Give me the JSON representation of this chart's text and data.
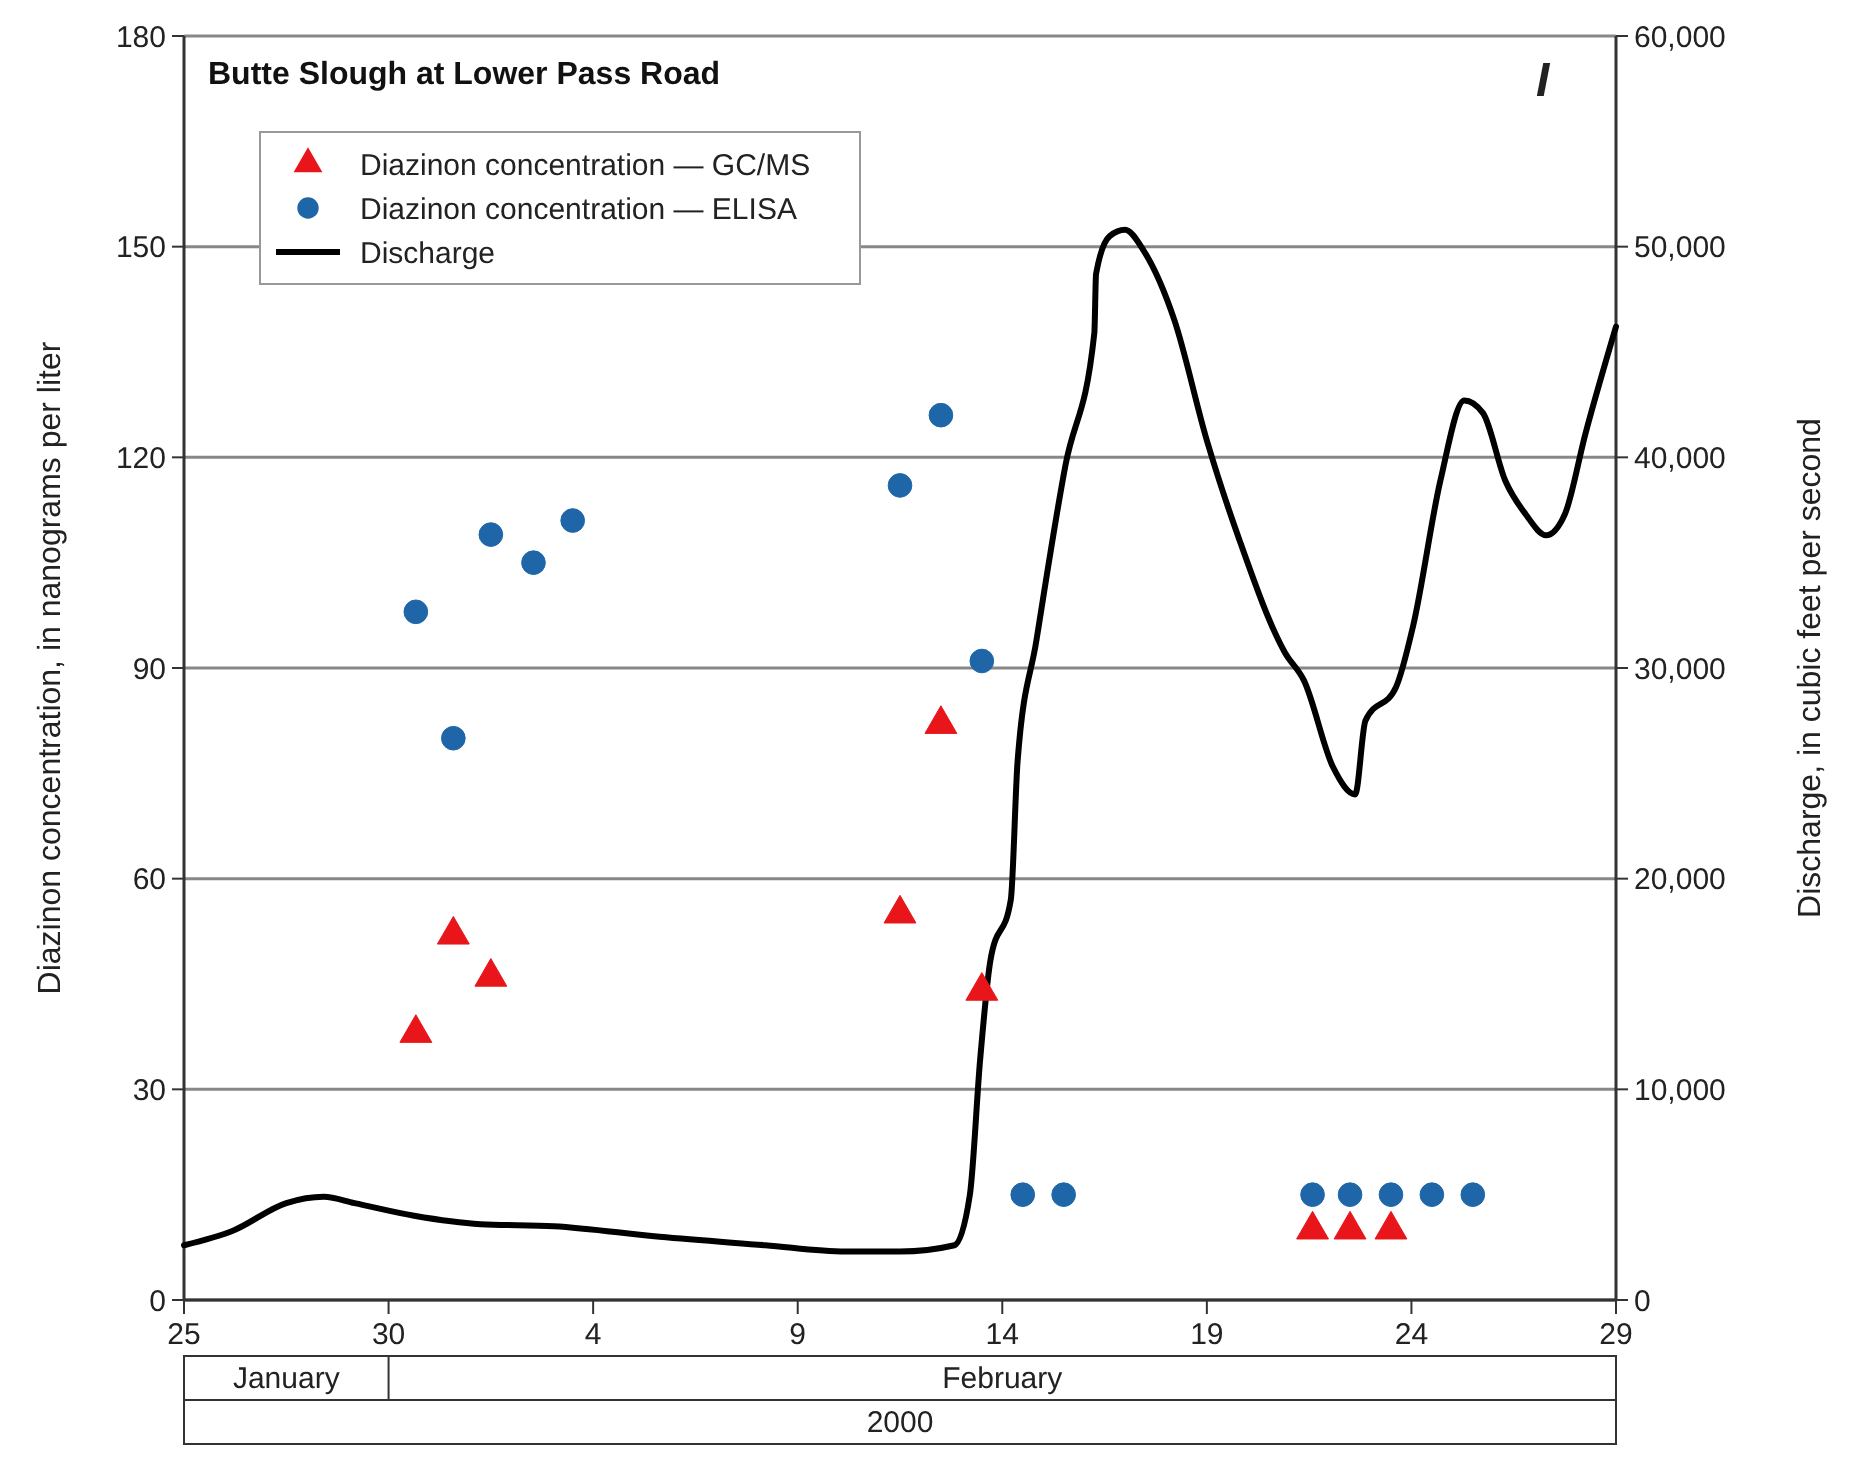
{
  "chart_data": {
    "type": "scatter",
    "title": "Butte Slough at Lower Pass Road",
    "ylabel": "Diazinon concentration, in nanograms per liter",
    "y2label": "Discharge, in cubic feet per second",
    "annotations": [
      "I",
      "January",
      "February",
      "2000"
    ],
    "xlim": [
      "2000-01-25",
      "2000-02-29"
    ],
    "xticks": [
      {
        "value": "2000-01-25",
        "label": "25"
      },
      {
        "value": "2000-01-30",
        "label": "30"
      },
      {
        "value": "2000-02-04",
        "label": "4"
      },
      {
        "value": "2000-02-09",
        "label": "9"
      },
      {
        "value": "2000-02-14",
        "label": "14"
      },
      {
        "value": "2000-02-19",
        "label": "19"
      },
      {
        "value": "2000-02-24",
        "label": "24"
      },
      {
        "value": "2000-02-29",
        "label": "29"
      }
    ],
    "ylim": [
      0,
      180
    ],
    "yticks": [
      0,
      30,
      60,
      90,
      120,
      150,
      180
    ],
    "y2lim": [
      0,
      60000
    ],
    "y2ticks": [
      {
        "value": 0,
        "label": "0"
      },
      {
        "value": 10000,
        "label": "10,000"
      },
      {
        "value": 20000,
        "label": "20,000"
      },
      {
        "value": 30000,
        "label": "30,000"
      },
      {
        "value": 40000,
        "label": "40,000"
      },
      {
        "value": 50000,
        "label": "50,000"
      },
      {
        "value": 60000,
        "label": "60,000"
      }
    ],
    "grid": "y",
    "legend": "top left",
    "series": [
      {
        "name": "Diazinon concentration — GC/MS",
        "marker": "triangle",
        "color": "#e8161b",
        "x": [
          "2000-01-30T16:00",
          "2000-01-31T14:00",
          "2000-02-01T12:00",
          "2000-02-11T12:00",
          "2000-02-12T12:00",
          "2000-02-13T12:00",
          "2000-02-21T14:00",
          "2000-02-22T12:00",
          "2000-02-23T12:00"
        ],
        "values": [
          38,
          52,
          46,
          55,
          82,
          44,
          10,
          10,
          10
        ]
      },
      {
        "name": "Diazinon concentration — ELISA",
        "marker": "circle",
        "color": "#1f66a8",
        "x": [
          "2000-01-30T16:00",
          "2000-01-31T14:00",
          "2000-02-01T12:00",
          "2000-02-02T13:00",
          "2000-02-03T12:00",
          "2000-02-11T12:00",
          "2000-02-12T12:00",
          "2000-02-13T12:00",
          "2000-02-14T12:00",
          "2000-02-15T12:00",
          "2000-02-21T14:00",
          "2000-02-22T12:00",
          "2000-02-23T12:00",
          "2000-02-24T12:00",
          "2000-02-25T12:00"
        ],
        "values": [
          98,
          80,
          109,
          105,
          111,
          116,
          126,
          91,
          15,
          15,
          15,
          15,
          15,
          15,
          15
        ]
      },
      {
        "name": "Discharge",
        "type": "line",
        "axis": "y2",
        "marker": "none",
        "line_style": "solid",
        "color": "#000000",
        "x": [
          "2000-01-25T00:00",
          "2000-01-26T05:00",
          "2000-01-27T12:00",
          "2000-01-28T10:00",
          "2000-01-29T04:00",
          "2000-01-30T15:00",
          "2000-02-01T06:00",
          "2000-02-03T01:00",
          "2000-02-05T15:00",
          "2000-02-08T05:00",
          "2000-02-10T04:00",
          "2000-02-11T12:00",
          "2000-02-12T20:00",
          "2000-02-13T05:00",
          "2000-02-13T11:00",
          "2000-02-13T17:00",
          "2000-02-14T05:00",
          "2000-02-14T09:00",
          "2000-02-14T20:00",
          "2000-02-15T13:00",
          "2000-02-16T06:00",
          "2000-02-16T07:00",
          "2000-02-16T15:00",
          "2000-02-17T00:00",
          "2000-02-17T11:00",
          "2000-02-18T05:00",
          "2000-02-19T00:00",
          "2000-02-19T19:00",
          "2000-02-20T22:00",
          "2000-02-21T09:00",
          "2000-02-22T02:00",
          "2000-02-22T15:00",
          "2000-02-22T21:00",
          "2000-02-23T15:00",
          "2000-02-24T01:00",
          "2000-02-24T17:00",
          "2000-02-25T07:00",
          "2000-02-25T18:00",
          "2000-02-26T07:00",
          "2000-02-26T19:00",
          "2000-02-27T07:00",
          "2000-02-27T18:00",
          "2000-02-28T06:00",
          "2000-02-29T00:00"
        ],
        "values": [
          2600,
          3300,
          4600,
          4900,
          4600,
          4000,
          3600,
          3500,
          3000,
          2600,
          2300,
          2300,
          2600,
          5000,
          11400,
          16100,
          19000,
          25600,
          31300,
          39600,
          45900,
          48700,
          50500,
          50800,
          49800,
          46500,
          40800,
          36100,
          30700,
          29400,
          25300,
          24000,
          27500,
          29100,
          32000,
          38900,
          42700,
          42100,
          38900,
          37300,
          36300,
          37300,
          41100,
          46200
        ]
      }
    ]
  }
}
